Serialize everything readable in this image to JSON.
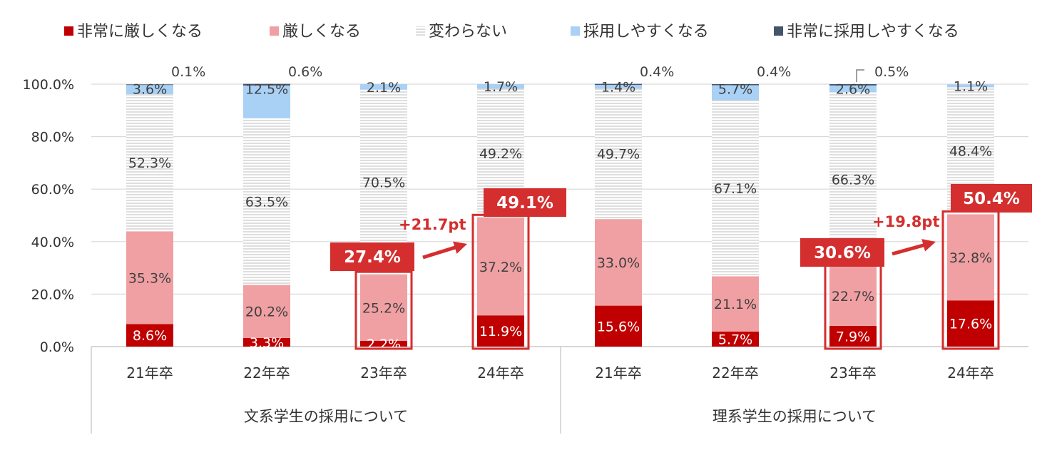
{
  "chart_data": {
    "type": "bar",
    "stacked": true,
    "legend_position": "top",
    "ylim": [
      0,
      100
    ],
    "yticks": [
      "0.0%",
      "20.0%",
      "40.0%",
      "60.0%",
      "80.0%",
      "100.0%"
    ],
    "grid": true,
    "colors": {
      "非常に厳しくなる": "#c00000",
      "厳しくなる": "#f0a0a3",
      "変わらない": "#d0d0d0",
      "採用しやすくなる": "#a9d0f5",
      "非常に採用しやすくなる": "#44546a"
    },
    "groups": [
      {
        "label": "文系学生の採用について",
        "categories": [
          "21年卒",
          "22年卒",
          "23年卒",
          "24年卒"
        ]
      },
      {
        "label": "理系学生の採用について",
        "categories": [
          "21年卒",
          "22年卒",
          "23年卒",
          "24年卒"
        ]
      }
    ],
    "series": [
      {
        "name": "非常に厳しくなる",
        "values": [
          8.6,
          3.3,
          2.2,
          11.9,
          15.6,
          5.7,
          7.9,
          17.6
        ],
        "labels": [
          "8.6%",
          "3.3%",
          "2.2%",
          "11.9%",
          "15.6%",
          "5.7%",
          "7.9%",
          "17.6%"
        ]
      },
      {
        "name": "厳しくなる",
        "values": [
          35.3,
          20.2,
          25.2,
          37.2,
          33.0,
          21.1,
          22.7,
          32.8
        ],
        "labels": [
          "35.3%",
          "20.2%",
          "25.2%",
          "37.2%",
          "33.0%",
          "21.1%",
          "22.7%",
          "32.8%"
        ]
      },
      {
        "name": "変わらない",
        "values": [
          52.3,
          63.5,
          70.5,
          49.2,
          49.7,
          67.1,
          66.3,
          48.4
        ],
        "labels": [
          "52.3%",
          "63.5%",
          "70.5%",
          "49.2%",
          "49.7%",
          "67.1%",
          "66.3%",
          "48.4%"
        ]
      },
      {
        "name": "採用しやすくなる",
        "values": [
          3.6,
          12.5,
          2.1,
          1.7,
          1.4,
          5.7,
          2.6,
          1.1
        ],
        "labels": [
          "3.6%",
          "12.5%",
          "2.1%",
          "1.7%",
          "1.4%",
          "5.7%",
          "2.6%",
          "1.1%"
        ]
      },
      {
        "name": "非常に採用しやすくなる",
        "values": [
          0.1,
          0.6,
          0.0,
          0.0,
          0.4,
          0.4,
          0.5,
          0.0
        ],
        "labels": [
          "0.1%",
          "0.6%",
          "",
          "",
          "0.4%",
          "0.4%",
          "0.5%",
          ""
        ]
      }
    ],
    "annotations": [
      {
        "text": "27.4%",
        "bar_index": 2,
        "kind": "total-box"
      },
      {
        "text": "49.1%",
        "bar_index": 3,
        "kind": "total-box"
      },
      {
        "text": "+21.7pt",
        "from": 2,
        "to": 3,
        "kind": "arrow"
      },
      {
        "text": "30.6%",
        "bar_index": 6,
        "kind": "total-box"
      },
      {
        "text": "50.4%",
        "bar_index": 7,
        "kind": "total-box"
      },
      {
        "text": "+19.8pt",
        "from": 6,
        "to": 7,
        "kind": "arrow"
      }
    ]
  }
}
